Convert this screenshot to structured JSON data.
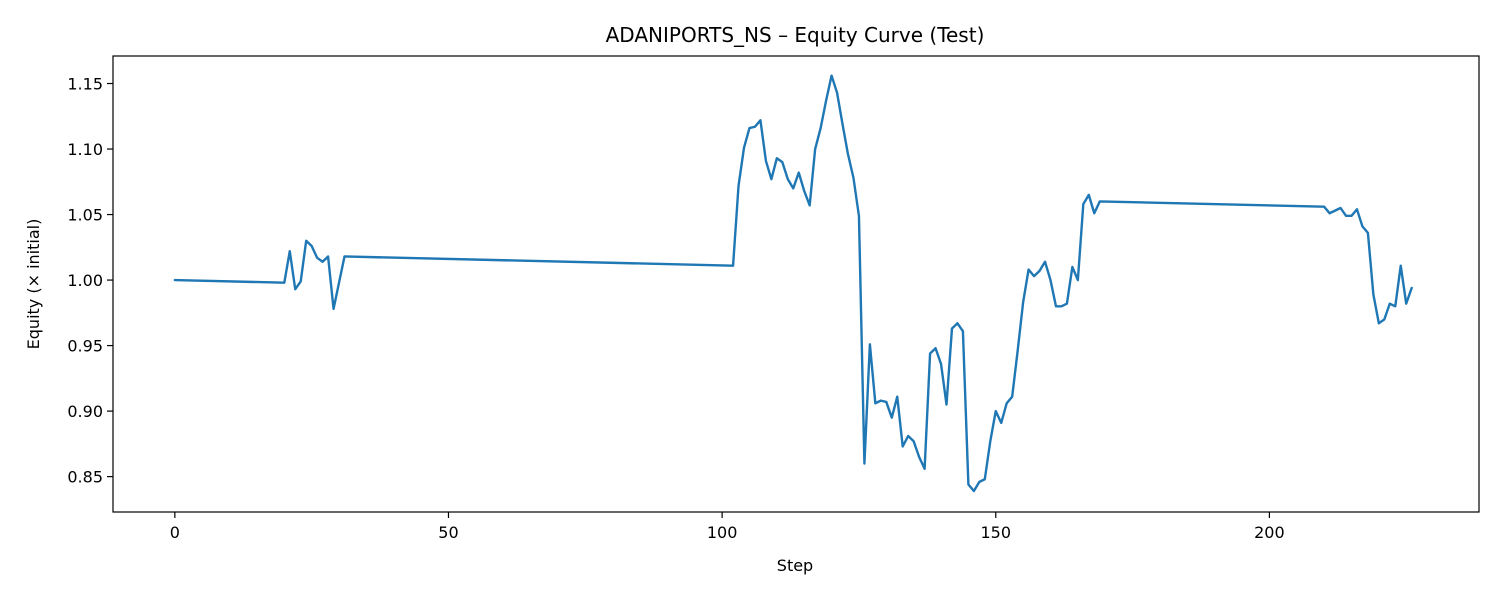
{
  "chart_data": {
    "type": "line",
    "title": "ADANIPORTS_NS – Equity Curve (Test)",
    "xlabel": "Step",
    "ylabel": "Equity (× initial)",
    "xlim": [
      -11.3,
      238.3
    ],
    "ylim": [
      0.823,
      1.171
    ],
    "xticks": [
      0,
      50,
      100,
      150,
      200
    ],
    "yticks": [
      0.85,
      0.9,
      0.95,
      1.0,
      1.05,
      1.1,
      1.15
    ],
    "ytick_labels": [
      "0.85",
      "0.90",
      "0.95",
      "1.00",
      "1.05",
      "1.10",
      "1.15"
    ],
    "grid": false,
    "series": [
      {
        "color": "#1f77b4",
        "points": [
          [
            0,
            1.0
          ],
          [
            20,
            0.998
          ],
          [
            21,
            1.022
          ],
          [
            22,
            0.993
          ],
          [
            23,
            0.999
          ],
          [
            24,
            1.03
          ],
          [
            25,
            1.026
          ],
          [
            26,
            1.017
          ],
          [
            27,
            1.014
          ],
          [
            28,
            1.018
          ],
          [
            29,
            0.978
          ],
          [
            30,
            0.998
          ],
          [
            31,
            1.018
          ],
          [
            102,
            1.011
          ],
          [
            103,
            1.072
          ],
          [
            104,
            1.101
          ],
          [
            105,
            1.116
          ],
          [
            106,
            1.117
          ],
          [
            107,
            1.122
          ],
          [
            108,
            1.091
          ],
          [
            109,
            1.077
          ],
          [
            110,
            1.093
          ],
          [
            111,
            1.09
          ],
          [
            112,
            1.077
          ],
          [
            113,
            1.07
          ],
          [
            114,
            1.082
          ],
          [
            115,
            1.068
          ],
          [
            116,
            1.057
          ],
          [
            117,
            1.1
          ],
          [
            118,
            1.116
          ],
          [
            119,
            1.137
          ],
          [
            120,
            1.156
          ],
          [
            121,
            1.143
          ],
          [
            122,
            1.119
          ],
          [
            123,
            1.096
          ],
          [
            124,
            1.078
          ],
          [
            125,
            1.049
          ],
          [
            126,
            0.86
          ],
          [
            127,
            0.951
          ],
          [
            128,
            0.906
          ],
          [
            129,
            0.908
          ],
          [
            130,
            0.907
          ],
          [
            131,
            0.895
          ],
          [
            132,
            0.911
          ],
          [
            133,
            0.873
          ],
          [
            134,
            0.881
          ],
          [
            135,
            0.877
          ],
          [
            136,
            0.865
          ],
          [
            137,
            0.856
          ],
          [
            138,
            0.944
          ],
          [
            139,
            0.948
          ],
          [
            140,
            0.936
          ],
          [
            141,
            0.905
          ],
          [
            142,
            0.963
          ],
          [
            143,
            0.967
          ],
          [
            144,
            0.961
          ],
          [
            145,
            0.844
          ],
          [
            146,
            0.839
          ],
          [
            147,
            0.846
          ],
          [
            148,
            0.848
          ],
          [
            149,
            0.877
          ],
          [
            150,
            0.9
          ],
          [
            151,
            0.891
          ],
          [
            152,
            0.906
          ],
          [
            153,
            0.911
          ],
          [
            154,
            0.946
          ],
          [
            155,
            0.983
          ],
          [
            156,
            1.008
          ],
          [
            157,
            1.003
          ],
          [
            158,
            1.007
          ],
          [
            159,
            1.014
          ],
          [
            160,
            1.0
          ],
          [
            161,
            0.98
          ],
          [
            162,
            0.98
          ],
          [
            163,
            0.982
          ],
          [
            164,
            1.01
          ],
          [
            165,
            1.0
          ],
          [
            166,
            1.058
          ],
          [
            167,
            1.065
          ],
          [
            168,
            1.051
          ],
          [
            169,
            1.06
          ],
          [
            210,
            1.056
          ],
          [
            211,
            1.051
          ],
          [
            213,
            1.055
          ],
          [
            214,
            1.049
          ],
          [
            215,
            1.049
          ],
          [
            216,
            1.054
          ],
          [
            217,
            1.041
          ],
          [
            218,
            1.036
          ],
          [
            219,
            0.989
          ],
          [
            220,
            0.967
          ],
          [
            221,
            0.97
          ],
          [
            222,
            0.982
          ],
          [
            223,
            0.98
          ],
          [
            224,
            1.011
          ],
          [
            225,
            0.982
          ],
          [
            226,
            0.994
          ]
        ]
      }
    ]
  }
}
